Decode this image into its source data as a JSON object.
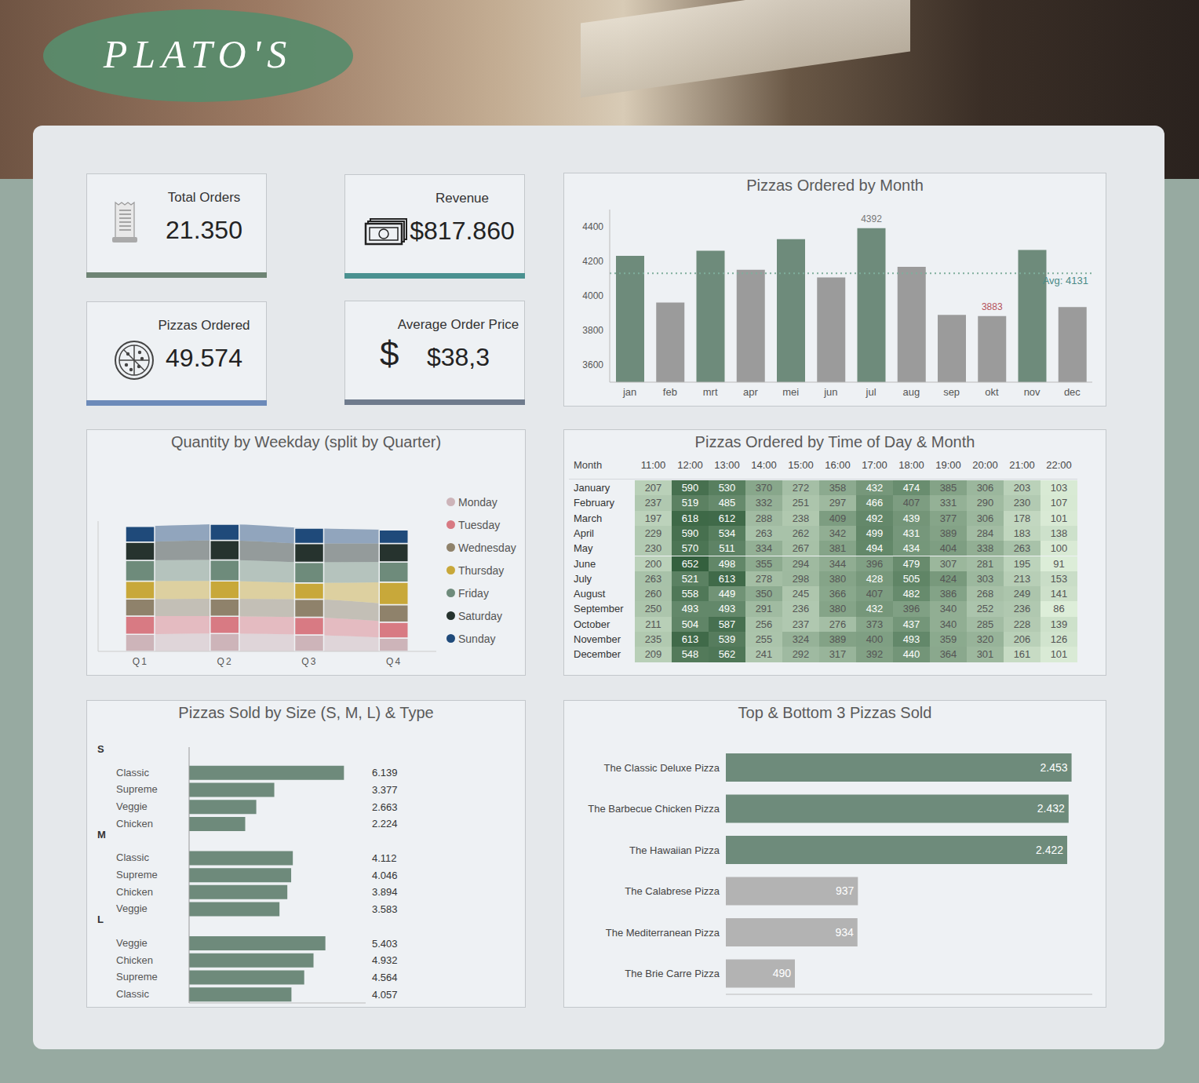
{
  "header": {
    "title": "PLATO'S"
  },
  "kpis": [
    {
      "label": "Total Orders",
      "value": "21.350"
    },
    {
      "label": "Revenue",
      "value": "$817.860"
    },
    {
      "label": "Pizzas Ordered",
      "value": "49.574"
    },
    {
      "label": "Average Order Price",
      "value": "$38,3",
      "icon": "$"
    }
  ],
  "chart_data": [
    {
      "type": "bar",
      "title": "Pizzas Ordered by Month",
      "categories": [
        "jan",
        "feb",
        "mrt",
        "apr",
        "mei",
        "jun",
        "jul",
        "aug",
        "sep",
        "okt",
        "nov",
        "dec"
      ],
      "values": [
        4232,
        3961,
        4261,
        4151,
        4328,
        4107,
        4392,
        4168,
        3890,
        3883,
        4266,
        3935
      ],
      "colors": [
        "#6e8b7b",
        "#9b9b9b",
        "#6e8b7b",
        "#9b9b9b",
        "#6e8b7b",
        "#9b9b9b",
        "#6e8b7b",
        "#9b9b9b",
        "#9b9b9b",
        "#9b9b9b",
        "#6e8b7b",
        "#9b9b9b"
      ],
      "data_labels": true,
      "value_labels": [
        null,
        null,
        null,
        null,
        null,
        null,
        "4392",
        null,
        null,
        "3883",
        null,
        null
      ],
      "reference_line": {
        "value": 4131,
        "label": "Avg: 4131"
      },
      "ylim": [
        3500,
        4500
      ],
      "yticks": [
        3600,
        3800,
        4000,
        4200,
        4400
      ]
    },
    {
      "type": "ribbon",
      "title": "Quantity by Weekday (split by Quarter)",
      "categories": [
        "Q1",
        "Q2",
        "Q3",
        "Q4"
      ],
      "series": [
        {
          "name": "Monday",
          "color": "#cdb4b9",
          "values": [
            1700,
            1790,
            1650,
            1340
          ]
        },
        {
          "name": "Tuesday",
          "color": "#d87a83",
          "values": [
            1830,
            1720,
            1760,
            1580
          ]
        },
        {
          "name": "Wednesday",
          "color": "#8f826b",
          "values": [
            1690,
            1740,
            1790,
            1730
          ]
        },
        {
          "name": "Thursday",
          "color": "#c8a83a",
          "values": [
            1790,
            1780,
            1640,
            2270
          ]
        },
        {
          "name": "Friday",
          "color": "#6e8b7b",
          "values": [
            2080,
            2100,
            2050,
            2000
          ]
        },
        {
          "name": "Saturday",
          "color": "#26332e",
          "values": [
            1820,
            1950,
            1870,
            1850
          ]
        },
        {
          "name": "Sunday",
          "color": "#1f4a7a",
          "values": [
            1560,
            1600,
            1530,
            1350
          ]
        }
      ],
      "stacked": true,
      "legend": "right",
      "tick_labels": "x",
      "ylim": [
        0,
        13000
      ],
      "yticks": []
    },
    {
      "type": "heatmap",
      "title": "Pizzas Ordered by Time of Day & Month",
      "ylabel": "Month",
      "x": [
        "11:00",
        "12:00",
        "13:00",
        "14:00",
        "15:00",
        "16:00",
        "17:00",
        "18:00",
        "19:00",
        "20:00",
        "21:00",
        "22:00"
      ],
      "y": [
        "January",
        "February",
        "March",
        "April",
        "May",
        "June",
        "July",
        "August",
        "September",
        "October",
        "November",
        "December"
      ],
      "cells": [
        [
          207,
          590,
          530,
          370,
          272,
          358,
          432,
          474,
          385,
          306,
          203,
          103
        ],
        [
          237,
          519,
          485,
          332,
          251,
          297,
          466,
          407,
          331,
          290,
          230,
          107
        ],
        [
          197,
          618,
          612,
          288,
          238,
          409,
          492,
          439,
          377,
          306,
          178,
          101
        ],
        [
          229,
          590,
          534,
          263,
          262,
          342,
          499,
          431,
          389,
          284,
          183,
          138
        ],
        [
          230,
          570,
          511,
          334,
          267,
          381,
          494,
          434,
          404,
          338,
          263,
          100
        ],
        [
          200,
          652,
          498,
          355,
          294,
          344,
          396,
          479,
          307,
          281,
          195,
          91
        ],
        [
          263,
          521,
          613,
          278,
          298,
          380,
          428,
          505,
          424,
          303,
          213,
          153
        ],
        [
          260,
          558,
          449,
          350,
          245,
          366,
          407,
          482,
          386,
          268,
          249,
          141
        ],
        [
          250,
          493,
          493,
          291,
          236,
          380,
          432,
          396,
          340,
          252,
          236,
          86
        ],
        [
          211,
          504,
          587,
          256,
          237,
          276,
          373,
          437,
          340,
          285,
          228,
          139
        ],
        [
          235,
          613,
          539,
          255,
          324,
          389,
          400,
          493,
          359,
          320,
          206,
          126
        ],
        [
          209,
          548,
          562,
          241,
          292,
          317,
          392,
          440,
          364,
          301,
          161,
          101
        ]
      ]
    },
    {
      "type": "bar",
      "orientation": "horizontal",
      "title": "Pizzas Sold by Size (S, M, L) & Type",
      "groups": [
        {
          "name": "S",
          "categories": [
            "Classic",
            "Supreme",
            "Veggie",
            "Chicken"
          ],
          "values": [
            6139,
            3377,
            2663,
            2224
          ],
          "value_labels": [
            "6.139",
            "3.377",
            "2.663",
            "2.224"
          ]
        },
        {
          "name": "M",
          "categories": [
            "Classic",
            "Supreme",
            "Chicken",
            "Veggie"
          ],
          "values": [
            4112,
            4046,
            3894,
            3583
          ],
          "value_labels": [
            "4.112",
            "4.046",
            "3.894",
            "3.583"
          ]
        },
        {
          "name": "L",
          "categories": [
            "Veggie",
            "Chicken",
            "Supreme",
            "Classic"
          ],
          "values": [
            5403,
            4932,
            4564,
            4057
          ],
          "value_labels": [
            "5.403",
            "4.932",
            "4.564",
            "4.057"
          ]
        }
      ],
      "color": "#6e8a7b",
      "data_labels": true,
      "tick_labels": "y",
      "xlim": [
        0,
        7000
      ],
      "xticks": []
    },
    {
      "type": "bar",
      "orientation": "horizontal",
      "title": "Top & Bottom 3 Pizzas Sold",
      "categories": [
        "The Classic Deluxe Pizza",
        "The Barbecue Chicken Pizza",
        "The Hawaiian Pizza",
        "The Calabrese Pizza",
        "The Mediterranean Pizza",
        "The Brie Carre Pizza"
      ],
      "values": [
        2453,
        2432,
        2422,
        937,
        934,
        490
      ],
      "value_labels": [
        "2.453",
        "2.432",
        "2.422",
        "937",
        "934",
        "490"
      ],
      "colors": [
        "#6e8b7b",
        "#6e8b7b",
        "#6e8b7b",
        "#b3b3b3",
        "#b3b3b3",
        "#b3b3b3"
      ],
      "data_labels": true,
      "tick_labels": "y",
      "xlim": [
        0,
        2600
      ],
      "xticks": []
    }
  ]
}
